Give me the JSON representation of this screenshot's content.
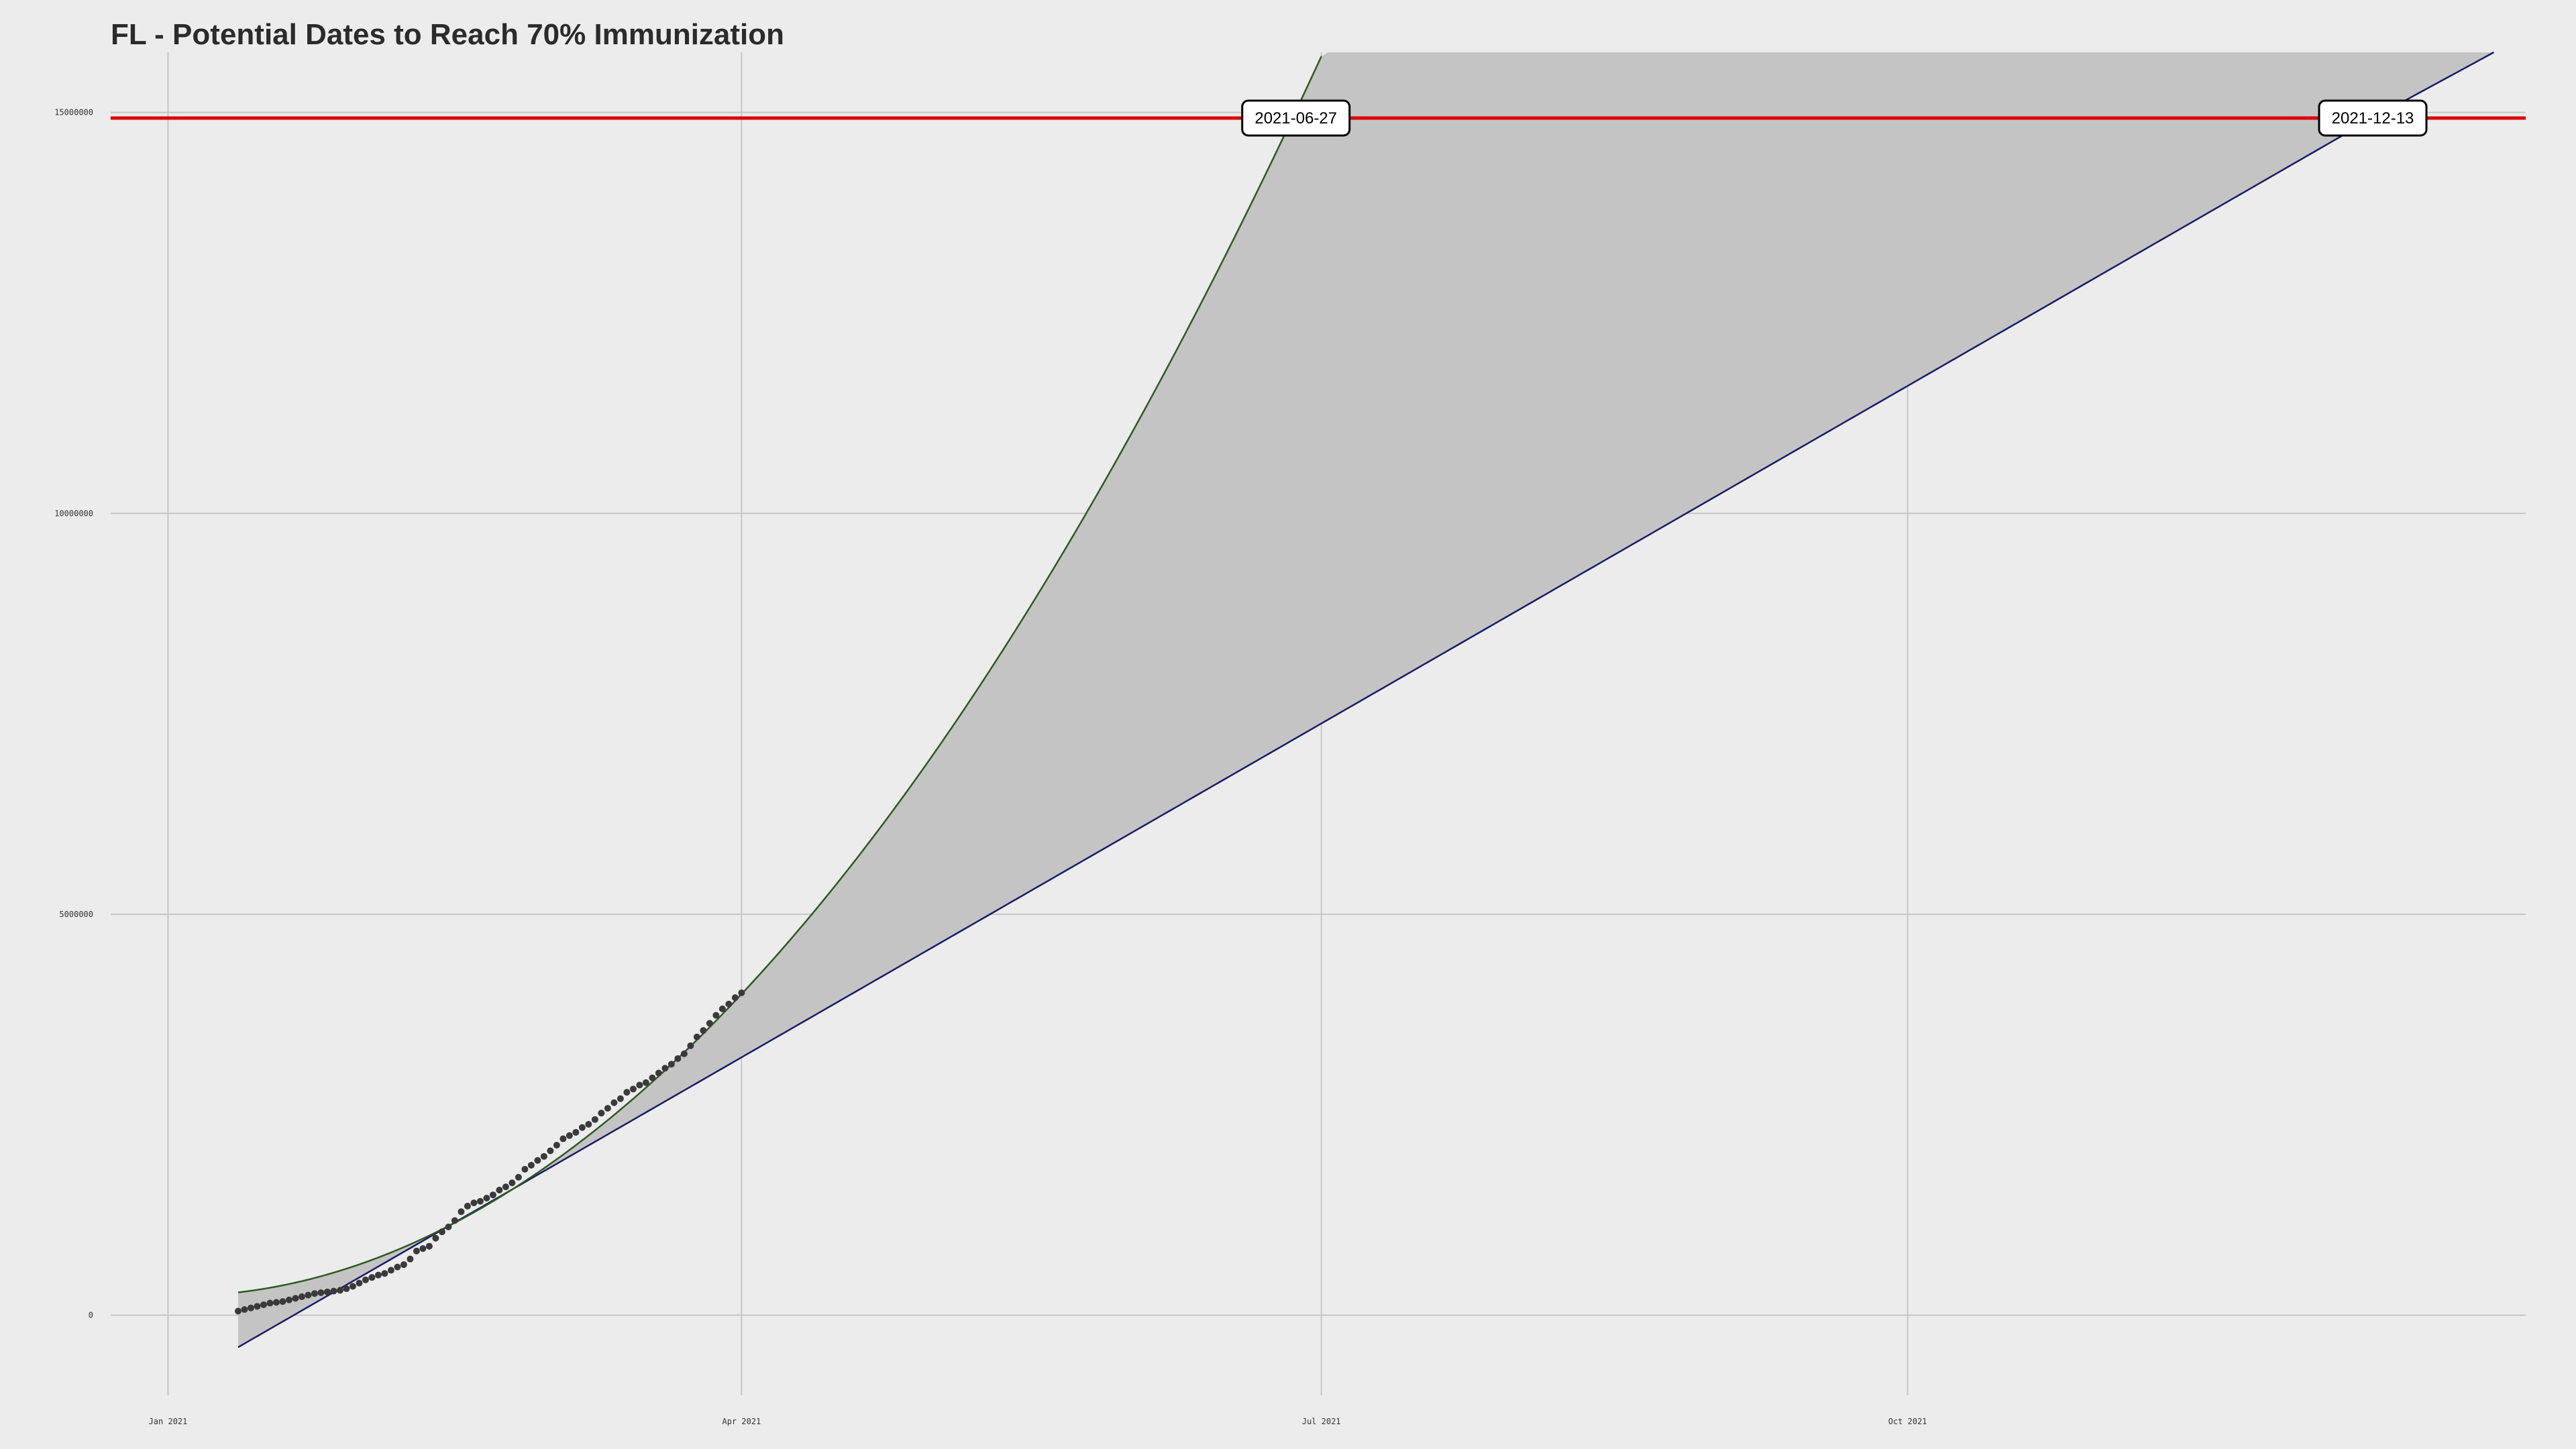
{
  "chart_data": {
    "type": "line",
    "title": "FL - Potential Dates to Reach 70% Immunization",
    "xlabel": "",
    "ylabel": "",
    "x_axis": {
      "type": "date",
      "range": [
        "2020-12-23",
        "2022-01-06"
      ],
      "ticks": [
        {
          "date": "2021-01-01",
          "label": "Jan 2021"
        },
        {
          "date": "2021-04-01",
          "label": "Apr 2021"
        },
        {
          "date": "2021-07-01",
          "label": "Jul 2021"
        },
        {
          "date": "2021-10-01",
          "label": "Oct 2021"
        }
      ]
    },
    "y_axis": {
      "range": [
        -1000000,
        15750000
      ],
      "ticks": [
        {
          "value": 0,
          "label": "0"
        },
        {
          "value": 5000000,
          "label": "5000000"
        },
        {
          "value": 10000000,
          "label": "10000000"
        },
        {
          "value": 15000000,
          "label": "15000000"
        }
      ]
    },
    "grid": true,
    "colors": {
      "background": "#ececec",
      "grid": "#c6c6c6",
      "threshold_line": "#dd0000",
      "ribbon": "#c4c4c4",
      "linear_fit": "#1a1a66",
      "quadratic_fit": "#2e5a1e",
      "points": "#3a3a3a"
    },
    "threshold": {
      "value": 14930000
    },
    "annotations": [
      {
        "date": "2021-06-27",
        "label": "2021-06-27",
        "y": 14930000
      },
      {
        "date": "2021-12-13",
        "label": "2021-12-13",
        "y": 14930000
      }
    ],
    "series": [
      {
        "type": "scatter",
        "x_start": "2021-01-12",
        "step_days": 1,
        "y": [
          50000,
          70000,
          90000,
          110000,
          130000,
          150000,
          160000,
          170000,
          190000,
          210000,
          230000,
          250000,
          270000,
          280000,
          290000,
          300000,
          310000,
          330000,
          360000,
          400000,
          440000,
          470000,
          500000,
          520000,
          560000,
          600000,
          630000,
          700000,
          800000,
          830000,
          860000,
          960000,
          1040000,
          1100000,
          1180000,
          1290000,
          1360000,
          1400000,
          1420000,
          1460000,
          1500000,
          1560000,
          1600000,
          1650000,
          1720000,
          1820000,
          1870000,
          1930000,
          1980000,
          2050000,
          2120000,
          2200000,
          2240000,
          2280000,
          2340000,
          2380000,
          2440000,
          2520000,
          2580000,
          2650000,
          2700000,
          2780000,
          2820000,
          2870000,
          2900000,
          2960000,
          3020000,
          3080000,
          3130000,
          3200000,
          3260000,
          3360000,
          3470000,
          3550000,
          3640000,
          3740000,
          3820000,
          3880000,
          3960000,
          4020000
        ]
      },
      {
        "type": "line",
        "fit": "linear",
        "x": [
          "2021-01-12",
          "2021-12-13",
          "2022-01-01"
        ],
        "y": [
          -400000,
          14930000,
          15750000
        ]
      },
      {
        "type": "line",
        "fit": "quadratic",
        "x": [
          "2021-01-12",
          "2021-02-01",
          "2021-03-01",
          "2021-04-01",
          "2021-05-01",
          "2021-06-01",
          "2021-06-27",
          "2021-07-01"
        ],
        "y": [
          320000,
          610000,
          1850000,
          3960000,
          7020000,
          11010000,
          14930000,
          15750000
        ]
      }
    ]
  }
}
